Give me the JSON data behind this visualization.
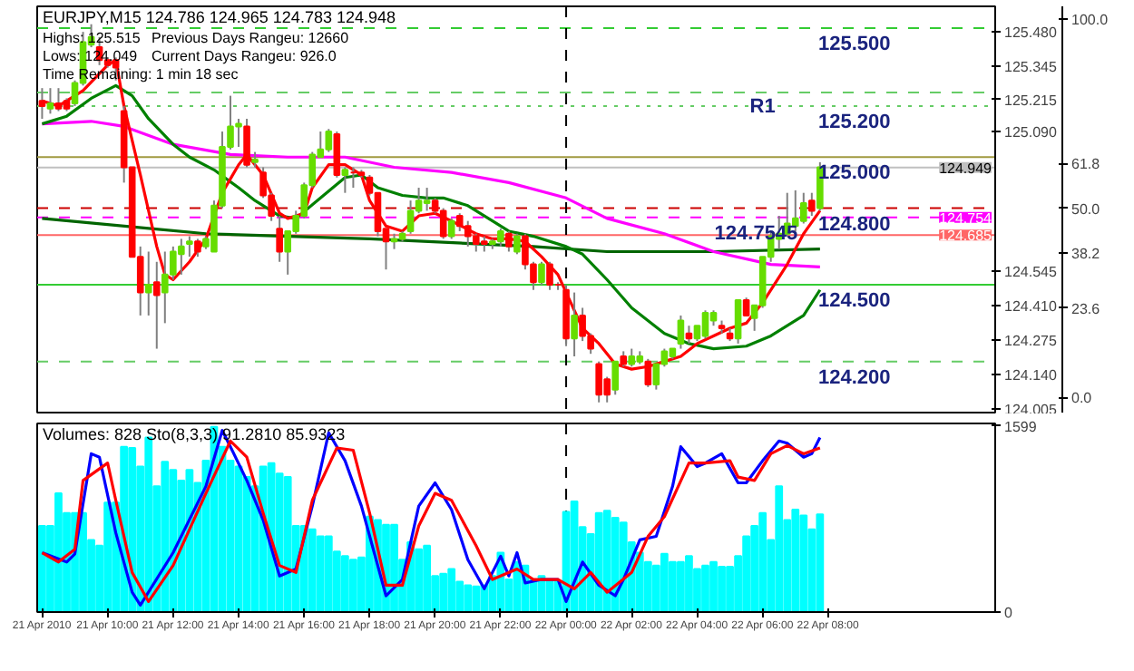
{
  "chart_data": [
    {
      "type": "candlestick",
      "title": "EURJPY,M15 124.786 124.965 124.783 124.948",
      "annotations": [
        "Highs: 125.515",
        "Previous Days Rangeu: 12660",
        "Lows: 124.049",
        "Current Days Rangeu: 926.0",
        "Time Remaining: 1 min 18 sec",
        {
          "text": "125.500",
          "x": "2010-04-22T08:48",
          "y": 125.495
        },
        {
          "text": "125.200",
          "x": "2010-04-22T08:48",
          "y": 125.19
        },
        {
          "text": "125.000",
          "x": "2010-04-22T08:48",
          "y": 124.99
        },
        {
          "text": "124.800",
          "x": "2010-04-22T08:48",
          "y": 124.79
        },
        {
          "text": "124.500",
          "x": "2010-04-22T08:48",
          "y": 124.49
        },
        {
          "text": "124.200",
          "x": "2010-04-22T08:48",
          "y": 124.19
        },
        {
          "text": "R1",
          "x": "2010-04-22T06:00",
          "y": 125.243
        },
        {
          "text": "124.7545",
          "x": "2010-04-22T05:48",
          "y": 124.754
        }
      ],
      "x": [
        "2010-04-21T08:00",
        "2010-04-21T08:15",
        "2010-04-21T08:30",
        "2010-04-21T08:45",
        "2010-04-21T09:00",
        "2010-04-21T09:15",
        "2010-04-21T09:30",
        "2010-04-21T09:45",
        "2010-04-21T10:00",
        "2010-04-21T10:15",
        "2010-04-21T10:30",
        "2010-04-21T10:45",
        "2010-04-21T11:00",
        "2010-04-21T11:15",
        "2010-04-21T11:30",
        "2010-04-21T11:45",
        "2010-04-21T12:00",
        "2010-04-21T12:15",
        "2010-04-21T12:30",
        "2010-04-21T12:45",
        "2010-04-21T13:00",
        "2010-04-21T13:15",
        "2010-04-21T13:30",
        "2010-04-21T13:45",
        "2010-04-21T14:00",
        "2010-04-21T14:15",
        "2010-04-21T14:30",
        "2010-04-21T14:45",
        "2010-04-21T15:00",
        "2010-04-21T15:15",
        "2010-04-21T15:30",
        "2010-04-21T15:45",
        "2010-04-21T16:00",
        "2010-04-21T16:15",
        "2010-04-21T16:30",
        "2010-04-21T16:45",
        "2010-04-21T17:00",
        "2010-04-21T17:15",
        "2010-04-21T17:30",
        "2010-04-21T17:45",
        "2010-04-21T18:00",
        "2010-04-21T18:15",
        "2010-04-21T18:30",
        "2010-04-21T18:45",
        "2010-04-21T19:00",
        "2010-04-21T19:15",
        "2010-04-21T19:30",
        "2010-04-21T19:45",
        "2010-04-21T20:00",
        "2010-04-21T20:15",
        "2010-04-21T20:30",
        "2010-04-21T20:45",
        "2010-04-21T21:00",
        "2010-04-21T21:15",
        "2010-04-21T21:30",
        "2010-04-21T21:45",
        "2010-04-21T22:00",
        "2010-04-21T22:15",
        "2010-04-21T22:30",
        "2010-04-21T22:45",
        "2010-04-21T23:00",
        "2010-04-21T23:15",
        "2010-04-21T23:30",
        "2010-04-21T23:45",
        "2010-04-22T00:00",
        "2010-04-22T00:15",
        "2010-04-22T00:30",
        "2010-04-22T00:45",
        "2010-04-22T01:00",
        "2010-04-22T01:15",
        "2010-04-22T01:30",
        "2010-04-22T01:45",
        "2010-04-22T02:00",
        "2010-04-22T02:15",
        "2010-04-22T02:30",
        "2010-04-22T02:45",
        "2010-04-22T03:00",
        "2010-04-22T03:15",
        "2010-04-22T03:30",
        "2010-04-22T03:45",
        "2010-04-22T04:00",
        "2010-04-22T04:15",
        "2010-04-22T04:30",
        "2010-04-22T04:45",
        "2010-04-22T05:00",
        "2010-04-22T05:15",
        "2010-04-22T05:30",
        "2010-04-22T05:45",
        "2010-04-22T06:00",
        "2010-04-22T06:15",
        "2010-04-22T06:30",
        "2010-04-22T06:45",
        "2010-04-22T07:00",
        "2010-04-22T07:15",
        "2010-04-22T07:30",
        "2010-04-22T07:45"
      ],
      "ohlc": [
        [
          125.21,
          125.26,
          125.14,
          125.19
        ],
        [
          125.18,
          125.26,
          125.16,
          125.2
        ],
        [
          125.2,
          125.26,
          125.17,
          125.18
        ],
        [
          125.21,
          125.22,
          125.17,
          125.18
        ],
        [
          125.2,
          125.29,
          125.19,
          125.28
        ],
        [
          125.28,
          125.48,
          125.27,
          125.44
        ],
        [
          125.43,
          125.51,
          125.42,
          125.46
        ],
        [
          125.42,
          125.46,
          125.35,
          125.37
        ],
        [
          125.37,
          125.38,
          125.34,
          125.35
        ],
        [
          125.37,
          125.38,
          125.29,
          125.34
        ],
        [
          125.17,
          125.19,
          124.89,
          124.95
        ],
        [
          124.95,
          124.95,
          124.6,
          124.6
        ],
        [
          124.6,
          124.64,
          124.37,
          124.46
        ],
        [
          124.46,
          124.62,
          124.37,
          124.49
        ],
        [
          124.5,
          124.58,
          124.24,
          124.45
        ],
        [
          124.46,
          124.62,
          124.34,
          124.53
        ],
        [
          124.53,
          124.64,
          124.51,
          124.62
        ],
        [
          124.61,
          124.67,
          124.53,
          124.64
        ],
        [
          124.65,
          124.68,
          124.6,
          124.66
        ],
        [
          124.66,
          124.67,
          124.6,
          124.62
        ],
        [
          124.64,
          124.68,
          124.63,
          124.67
        ],
        [
          124.62,
          124.82,
          124.62,
          124.8
        ],
        [
          124.8,
          125.09,
          124.79,
          125.03
        ],
        [
          125.03,
          125.23,
          125.02,
          125.11
        ],
        [
          125.11,
          125.14,
          125.03,
          125.12
        ],
        [
          125.11,
          125.14,
          124.95,
          124.96
        ],
        [
          124.97,
          125.01,
          124.95,
          124.98
        ],
        [
          124.93,
          124.95,
          124.83,
          124.84
        ],
        [
          124.84,
          124.85,
          124.74,
          124.76
        ],
        [
          124.71,
          124.76,
          124.58,
          124.62
        ],
        [
          124.62,
          124.7,
          124.53,
          124.7
        ],
        [
          124.7,
          124.78,
          124.69,
          124.76
        ],
        [
          124.76,
          124.89,
          124.75,
          124.88
        ],
        [
          124.88,
          125.01,
          124.87,
          125.0
        ],
        [
          124.99,
          125.09,
          124.99,
          125.02
        ],
        [
          125.02,
          125.1,
          125.01,
          125.09
        ],
        [
          125.08,
          125.09,
          124.91,
          124.92
        ],
        [
          124.92,
          124.95,
          124.85,
          124.94
        ],
        [
          124.93,
          124.95,
          124.87,
          124.93
        ],
        [
          124.93,
          124.94,
          124.91,
          124.92
        ],
        [
          124.91,
          124.92,
          124.84,
          124.85
        ],
        [
          124.85,
          124.85,
          124.68,
          124.7
        ],
        [
          124.71,
          124.71,
          124.55,
          124.66
        ],
        [
          124.66,
          124.69,
          124.63,
          124.67
        ],
        [
          124.67,
          124.7,
          124.66,
          124.69
        ],
        [
          124.7,
          124.82,
          124.69,
          124.78
        ],
        [
          124.78,
          124.87,
          124.77,
          124.82
        ],
        [
          124.81,
          124.87,
          124.78,
          124.82
        ],
        [
          124.82,
          124.83,
          124.77,
          124.78
        ],
        [
          124.78,
          124.79,
          124.67,
          124.68
        ],
        [
          124.68,
          124.75,
          124.67,
          124.74
        ],
        [
          124.76,
          124.77,
          124.7,
          124.72
        ],
        [
          124.72,
          124.74,
          124.64,
          124.68
        ],
        [
          124.68,
          124.69,
          124.62,
          124.65
        ],
        [
          124.66,
          124.68,
          124.62,
          124.65
        ],
        [
          124.65,
          124.67,
          124.63,
          124.66
        ],
        [
          124.66,
          124.71,
          124.64,
          124.7
        ],
        [
          124.69,
          124.7,
          124.62,
          124.64
        ],
        [
          124.62,
          124.69,
          124.61,
          124.68
        ],
        [
          124.68,
          124.69,
          124.55,
          124.57
        ],
        [
          124.57,
          124.58,
          124.47,
          124.5
        ],
        [
          124.5,
          124.58,
          124.49,
          124.57
        ],
        [
          124.57,
          124.58,
          124.47,
          124.49
        ],
        [
          124.49,
          124.5,
          124.47,
          124.49
        ],
        [
          124.47,
          124.49,
          124.25,
          124.28
        ],
        [
          124.28,
          124.46,
          124.21,
          124.37
        ],
        [
          124.37,
          124.4,
          124.27,
          124.29
        ],
        [
          124.29,
          124.3,
          124.22,
          124.24
        ],
        [
          124.18,
          124.19,
          124.03,
          124.06
        ],
        [
          124.12,
          124.13,
          124.03,
          124.06
        ],
        [
          124.08,
          124.19,
          124.06,
          124.19
        ],
        [
          124.21,
          124.23,
          124.17,
          124.18
        ],
        [
          124.18,
          124.24,
          124.17,
          124.21
        ],
        [
          124.19,
          124.23,
          124.18,
          124.21
        ],
        [
          124.19,
          124.2,
          124.09,
          124.1
        ],
        [
          124.1,
          124.18,
          124.08,
          124.18
        ],
        [
          124.18,
          124.24,
          124.17,
          124.23
        ],
        [
          124.21,
          124.24,
          124.2,
          124.24
        ],
        [
          124.26,
          124.37,
          124.24,
          124.35
        ],
        [
          124.3,
          124.33,
          124.26,
          124.28
        ],
        [
          124.28,
          124.33,
          124.27,
          124.33
        ],
        [
          124.29,
          124.39,
          124.28,
          124.38
        ],
        [
          124.35,
          124.39,
          124.33,
          124.38
        ],
        [
          124.33,
          124.35,
          124.3,
          124.32
        ],
        [
          124.3,
          124.32,
          124.27,
          124.28
        ],
        [
          124.28,
          124.43,
          124.26,
          124.43
        ],
        [
          124.43,
          124.44,
          124.37,
          124.37
        ],
        [
          124.36,
          124.41,
          124.31,
          124.41
        ],
        [
          124.41,
          124.6,
          124.4,
          124.6
        ],
        [
          124.6,
          124.7,
          124.58,
          124.68
        ],
        [
          124.67,
          124.76,
          124.63,
          124.69
        ],
        [
          124.69,
          124.85,
          124.68,
          124.73
        ],
        [
          124.72,
          124.86,
          124.7,
          124.75
        ],
        [
          124.74,
          124.85,
          124.73,
          124.81
        ],
        [
          124.82,
          124.85,
          124.76,
          124.78
        ],
        [
          124.79,
          124.97,
          124.78,
          124.95
        ]
      ],
      "series": [
        {
          "type": "line",
          "color": "#006400",
          "x": [
            "2010-04-21T08:00",
            "2010-04-21T13:00",
            "2010-04-21T18:00",
            "2010-04-21T23:00",
            "2010-04-22T01:15",
            "2010-04-22T04:30",
            "2010-04-22T07:45"
          ],
          "values": [
            124.75,
            124.69,
            124.67,
            124.64,
            124.62,
            124.62,
            124.63
          ]
        },
        {
          "type": "line",
          "color": "#ff00ff",
          "x": [
            "2010-04-21T08:00",
            "2010-04-21T09:30",
            "2010-04-21T10:30",
            "2010-04-21T12:00",
            "2010-04-21T13:45",
            "2010-04-21T15:30",
            "2010-04-21T17:15",
            "2010-04-21T18:45",
            "2010-04-21T20:30",
            "2010-04-21T22:15",
            "2010-04-22T00:00",
            "2010-04-22T01:15",
            "2010-04-22T03:00",
            "2010-04-22T04:30",
            "2010-04-22T06:15",
            "2010-04-22T07:45"
          ],
          "values": [
            125.12,
            125.13,
            125.11,
            125.04,
            125.0,
            124.99,
            124.99,
            124.95,
            124.93,
            124.89,
            124.83,
            124.75,
            124.69,
            124.62,
            124.57,
            124.56
          ]
        },
        {
          "type": "line",
          "color": "#008000",
          "x": [
            "2010-04-21T08:00",
            "2010-04-21T08:45",
            "2010-04-21T09:30",
            "2010-04-21T10:15",
            "2010-04-21T10:45",
            "2010-04-21T11:15",
            "2010-04-21T12:00",
            "2010-04-21T12:30",
            "2010-04-21T13:15",
            "2010-04-21T14:00",
            "2010-04-21T14:30",
            "2010-04-21T15:15",
            "2010-04-21T15:45",
            "2010-04-21T16:30",
            "2010-04-21T17:15",
            "2010-04-21T17:45",
            "2010-04-21T18:15",
            "2010-04-21T19:00",
            "2010-04-21T19:45",
            "2010-04-21T20:15",
            "2010-04-21T21:00",
            "2010-04-21T21:45",
            "2010-04-21T22:15",
            "2010-04-21T23:00",
            "2010-04-22T00:00",
            "2010-04-22T00:30",
            "2010-04-22T01:15",
            "2010-04-22T02:00",
            "2010-04-22T03:00",
            "2010-04-22T03:45",
            "2010-04-22T04:30",
            "2010-04-22T05:30",
            "2010-04-22T06:15",
            "2010-04-22T07:15",
            "2010-04-22T07:45"
          ],
          "values": [
            125.12,
            125.15,
            125.22,
            125.27,
            125.23,
            125.14,
            125.04,
            124.99,
            124.94,
            124.87,
            124.82,
            124.76,
            124.75,
            124.83,
            124.91,
            124.92,
            124.87,
            124.84,
            124.83,
            124.83,
            124.8,
            124.74,
            124.7,
            124.68,
            124.64,
            124.61,
            124.51,
            124.4,
            124.3,
            124.26,
            124.24,
            124.25,
            124.29,
            124.37,
            124.47
          ]
        },
        {
          "type": "line",
          "color": "#ff0000",
          "x": [
            "2010-04-21T08:00",
            "2010-04-21T08:30",
            "2010-04-21T09:15",
            "2010-04-21T10:00",
            "2010-04-21T10:15",
            "2010-04-21T10:30",
            "2010-04-21T11:00",
            "2010-04-21T11:30",
            "2010-04-21T11:45",
            "2010-04-21T12:00",
            "2010-04-21T12:30",
            "2010-04-21T13:00",
            "2010-04-21T13:30",
            "2010-04-21T14:00",
            "2010-04-21T14:15",
            "2010-04-21T14:45",
            "2010-04-21T15:15",
            "2010-04-21T15:30",
            "2010-04-21T16:00",
            "2010-04-21T16:15",
            "2010-04-21T16:45",
            "2010-04-21T17:15",
            "2010-04-21T17:45",
            "2010-04-21T18:00",
            "2010-04-21T18:30",
            "2010-04-21T19:00",
            "2010-04-21T19:30",
            "2010-04-21T20:00",
            "2010-04-21T20:30",
            "2010-04-21T21:15",
            "2010-04-21T21:45",
            "2010-04-21T22:15",
            "2010-04-21T22:45",
            "2010-04-21T23:15",
            "2010-04-21T23:45",
            "2010-04-22T00:00",
            "2010-04-22T00:30",
            "2010-04-22T01:00",
            "2010-04-22T01:30",
            "2010-04-22T02:00",
            "2010-04-22T02:30",
            "2010-04-22T03:00",
            "2010-04-22T03:30",
            "2010-04-22T04:00",
            "2010-04-22T04:30",
            "2010-04-22T05:00",
            "2010-04-22T05:30",
            "2010-04-22T06:00",
            "2010-04-22T06:45",
            "2010-04-22T07:15",
            "2010-04-22T07:45"
          ],
          "values": [
            125.21,
            125.19,
            125.25,
            125.35,
            125.37,
            125.19,
            124.92,
            124.64,
            124.53,
            124.51,
            124.58,
            124.67,
            124.85,
            124.96,
            125.0,
            124.92,
            124.77,
            124.75,
            124.77,
            124.87,
            124.96,
            124.96,
            124.92,
            124.82,
            124.72,
            124.7,
            124.76,
            124.77,
            124.74,
            124.69,
            124.67,
            124.67,
            124.66,
            124.6,
            124.53,
            124.46,
            124.32,
            124.26,
            124.18,
            124.16,
            124.17,
            124.19,
            124.21,
            124.26,
            124.29,
            124.32,
            124.34,
            124.42,
            124.57,
            124.69,
            124.78
          ]
        }
      ],
      "ref_lines": [
        {
          "axis": "y",
          "value": 125.495,
          "color": "#33cc33",
          "line_style": "dashed"
        },
        {
          "axis": "y",
          "value": 125.243,
          "color": "#66cc66",
          "line_style": "dashed"
        },
        {
          "axis": "y",
          "value": 125.19,
          "color": "#66cc66",
          "line_style": "dotted"
        },
        {
          "axis": "y",
          "value": 124.99,
          "color": "#a09a40",
          "line_style": "solid"
        },
        {
          "axis": "y",
          "value": 124.949,
          "label": "124.949",
          "color": "#c0c0c0",
          "line_style": "solid"
        },
        {
          "axis": "y",
          "value": 124.79,
          "color": "#cc0000",
          "line_style": "dashed"
        },
        {
          "axis": "y",
          "value": 124.754,
          "label": "124.754",
          "color": "#ff00ff",
          "line_style": "dashed"
        },
        {
          "axis": "y",
          "value": 124.685,
          "label": "124.685",
          "color": "#ff6666",
          "line_style": "solid"
        },
        {
          "axis": "y",
          "value": 124.49,
          "color": "#33cc33",
          "line_style": "solid"
        },
        {
          "axis": "y",
          "value": 124.19,
          "color": "#66cc66",
          "line_style": "dashed"
        },
        {
          "axis": "x",
          "value": "2010-04-22T00:00",
          "color": "#000000",
          "line_style": "dashed"
        }
      ],
      "xlim": [
        "2010-04-21T07:51",
        "2010-04-22T13:06"
      ],
      "ylim": [
        123.99,
        125.58
      ],
      "yticks": [
        {
          "value": 125.48,
          "label": "125.480"
        },
        {
          "value": 125.345,
          "label": "125.345"
        },
        {
          "value": 125.215,
          "label": "125.215"
        },
        {
          "value": 125.09,
          "label": "125.090"
        },
        {
          "value": 124.545,
          "label": "124.545"
        },
        {
          "value": 124.41,
          "label": "124.410"
        },
        {
          "value": 124.275,
          "label": "124.275"
        },
        {
          "value": 124.14,
          "label": "124.140"
        },
        {
          "value": 124.005,
          "label": "124.005"
        }
      ],
      "y2lim": [
        -4.05,
        103.4
      ],
      "y2ticks": [
        {
          "value": 100,
          "label": "100.0"
        },
        61.8,
        {
          "value": 50,
          "label": "50.0"
        },
        38.2,
        23.6,
        {
          "value": 0,
          "label": "0.0"
        }
      ],
      "tick_labels": "y"
    },
    {
      "type": "bar",
      "title": "Volumes: 828 Sto(8,3,3) 91.2810 85.9323",
      "x": [
        "2010-04-21T08:00",
        "2010-04-21T08:15",
        "2010-04-21T08:30",
        "2010-04-21T08:45",
        "2010-04-21T09:00",
        "2010-04-21T09:15",
        "2010-04-21T09:30",
        "2010-04-21T09:45",
        "2010-04-21T10:00",
        "2010-04-21T10:15",
        "2010-04-21T10:30",
        "2010-04-21T10:45",
        "2010-04-21T11:00",
        "2010-04-21T11:15",
        "2010-04-21T11:30",
        "2010-04-21T11:45",
        "2010-04-21T12:00",
        "2010-04-21T12:15",
        "2010-04-21T12:30",
        "2010-04-21T12:45",
        "2010-04-21T13:00",
        "2010-04-21T13:15",
        "2010-04-21T13:30",
        "2010-04-21T13:45",
        "2010-04-21T14:00",
        "2010-04-21T14:15",
        "2010-04-21T14:30",
        "2010-04-21T14:45",
        "2010-04-21T15:00",
        "2010-04-21T15:15",
        "2010-04-21T15:30",
        "2010-04-21T15:45",
        "2010-04-21T16:00",
        "2010-04-21T16:15",
        "2010-04-21T16:30",
        "2010-04-21T16:45",
        "2010-04-21T17:00",
        "2010-04-21T17:15",
        "2010-04-21T17:30",
        "2010-04-21T17:45",
        "2010-04-21T18:00",
        "2010-04-21T18:15",
        "2010-04-21T18:30",
        "2010-04-21T18:45",
        "2010-04-21T19:00",
        "2010-04-21T19:15",
        "2010-04-21T19:30",
        "2010-04-21T19:45",
        "2010-04-21T20:00",
        "2010-04-21T20:15",
        "2010-04-21T20:30",
        "2010-04-21T20:45",
        "2010-04-21T21:00",
        "2010-04-21T21:15",
        "2010-04-21T21:30",
        "2010-04-21T21:45",
        "2010-04-21T22:00",
        "2010-04-21T22:15",
        "2010-04-21T22:30",
        "2010-04-21T22:45",
        "2010-04-21T23:00",
        "2010-04-21T23:15",
        "2010-04-21T23:30",
        "2010-04-21T23:45",
        "2010-04-22T00:00",
        "2010-04-22T00:15",
        "2010-04-22T00:30",
        "2010-04-22T00:45",
        "2010-04-22T01:00",
        "2010-04-22T01:15",
        "2010-04-22T01:30",
        "2010-04-22T01:45",
        "2010-04-22T02:00",
        "2010-04-22T02:15",
        "2010-04-22T02:30",
        "2010-04-22T02:45",
        "2010-04-22T03:00",
        "2010-04-22T03:15",
        "2010-04-22T03:30",
        "2010-04-22T03:45",
        "2010-04-22T04:00",
        "2010-04-22T04:15",
        "2010-04-22T04:30",
        "2010-04-22T04:45",
        "2010-04-22T05:00",
        "2010-04-22T05:15",
        "2010-04-22T05:30",
        "2010-04-22T05:45",
        "2010-04-22T06:00",
        "2010-04-22T06:15",
        "2010-04-22T06:30",
        "2010-04-22T06:45",
        "2010-04-22T07:00",
        "2010-04-22T07:15",
        "2010-04-22T07:30",
        "2010-04-22T07:45"
      ],
      "series": [
        {
          "color": "#00ffff",
          "values": [
            740,
            740,
            1020,
            850,
            850,
            850,
            620,
            570,
            940,
            940,
            1420,
            1410,
            1250,
            1500,
            1080,
            1290,
            1220,
            1130,
            1220,
            1110,
            1300,
            1590,
            1420,
            1300,
            1250,
            1160,
            1080,
            1250,
            1280,
            1190,
            1160,
            740,
            740,
            710,
            650,
            650,
            520,
            480,
            450,
            470,
            820,
            790,
            750,
            750,
            450,
            600,
            540,
            570,
            310,
            330,
            370,
            260,
            230,
            220,
            230,
            310,
            510,
            280,
            430,
            400,
            280,
            310,
            280,
            260,
            860,
            950,
            730,
            670,
            850,
            870,
            810,
            770,
            600,
            510,
            430,
            400,
            500,
            430,
            430,
            480,
            370,
            400,
            430,
            390,
            390,
            480,
            650,
            740,
            850,
            620,
            1080,
            790,
            880,
            830,
            710,
            840
          ]
        },
        {
          "type": "line",
          "color": "#0000ff",
          "x": [
            "2010-04-21T08:00",
            "2010-04-21T08:45",
            "2010-04-21T09:00",
            "2010-04-21T09:30",
            "2010-04-21T09:45",
            "2010-04-21T10:15",
            "2010-04-21T10:45",
            "2010-04-21T11:00",
            "2010-04-21T12:00",
            "2010-04-21T13:00",
            "2010-04-21T13:30",
            "2010-04-21T13:45",
            "2010-04-21T14:15",
            "2010-04-21T14:45",
            "2010-04-21T15:15",
            "2010-04-21T15:45",
            "2010-04-21T16:15",
            "2010-04-21T16:45",
            "2010-04-21T17:15",
            "2010-04-21T17:45",
            "2010-04-21T18:30",
            "2010-04-21T19:00",
            "2010-04-21T19:30",
            "2010-04-21T20:00",
            "2010-04-21T20:30",
            "2010-04-21T21:00",
            "2010-04-21T21:30",
            "2010-04-21T22:00",
            "2010-04-21T22:15",
            "2010-04-21T22:30",
            "2010-04-21T22:45",
            "2010-04-21T23:15",
            "2010-04-21T23:45",
            "2010-04-22T00:00",
            "2010-04-22T00:30",
            "2010-04-22T01:00",
            "2010-04-22T01:30",
            "2010-04-22T01:45",
            "2010-04-22T02:15",
            "2010-04-22T02:45",
            "2010-04-22T03:15",
            "2010-04-22T03:30",
            "2010-04-22T04:00",
            "2010-04-22T04:15",
            "2010-04-22T04:45",
            "2010-04-22T05:15",
            "2010-04-22T05:30",
            "2010-04-22T06:00",
            "2010-04-22T06:30",
            "2010-04-22T06:45",
            "2010-04-22T07:15",
            "2010-04-22T07:30",
            "2010-04-22T07:45"
          ],
          "values": [
            510,
            430,
            500,
            1360,
            1330,
            680,
            170,
            60,
            510,
            1080,
            1560,
            1420,
            1130,
            790,
            310,
            370,
            910,
            1540,
            1300,
            910,
            140,
            280,
            910,
            1110,
            880,
            450,
            200,
            480,
            310,
            510,
            250,
            280,
            280,
            90,
            430,
            230,
            140,
            280,
            620,
            650,
            1080,
            1420,
            1250,
            1280,
            1360,
            1110,
            1110,
            1300,
            1470,
            1450,
            1330,
            1360,
            1500
          ]
        },
        {
          "type": "line",
          "color": "#ff0000",
          "x": [
            "2010-04-21T08:00",
            "2010-04-21T08:30",
            "2010-04-21T09:00",
            "2010-04-21T09:15",
            "2010-04-21T10:00",
            "2010-04-21T10:15",
            "2010-04-21T10:45",
            "2010-04-21T11:15",
            "2010-04-21T12:00",
            "2010-04-21T13:00",
            "2010-04-21T13:45",
            "2010-04-21T14:15",
            "2010-04-21T14:45",
            "2010-04-21T15:15",
            "2010-04-21T15:45",
            "2010-04-21T16:15",
            "2010-04-21T17:00",
            "2010-04-21T17:30",
            "2010-04-21T18:00",
            "2010-04-21T18:30",
            "2010-04-21T19:00",
            "2010-04-21T19:30",
            "2010-04-21T20:00",
            "2010-04-21T20:30",
            "2010-04-21T21:15",
            "2010-04-21T21:45",
            "2010-04-21T22:30",
            "2010-04-21T23:00",
            "2010-04-21T23:45",
            "2010-04-22T00:15",
            "2010-04-22T00:45",
            "2010-04-22T01:15",
            "2010-04-22T02:00",
            "2010-04-22T02:30",
            "2010-04-22T03:00",
            "2010-04-22T03:45",
            "2010-04-22T04:15",
            "2010-04-22T05:00",
            "2010-04-22T05:15",
            "2010-04-22T05:45",
            "2010-04-22T06:15",
            "2010-04-22T06:45",
            "2010-04-22T07:15",
            "2010-04-22T07:45"
          ],
          "values": [
            510,
            430,
            540,
            1130,
            1280,
            960,
            340,
            90,
            400,
            1020,
            1470,
            1330,
            850,
            400,
            340,
            960,
            1410,
            1390,
            850,
            230,
            230,
            740,
            1020,
            960,
            570,
            280,
            370,
            280,
            280,
            200,
            340,
            170,
            340,
            650,
            820,
            1280,
            1280,
            1300,
            1160,
            1130,
            1360,
            1430,
            1360,
            1410
          ]
        }
      ],
      "ref_lines": [
        {
          "axis": "x",
          "value": "2010-04-22T00:00",
          "color": "#000000",
          "line_style": "dashed"
        }
      ],
      "xlim": [
        "2010-04-21T07:51",
        "2010-04-22T13:06"
      ],
      "ylim": [
        0,
        1620
      ],
      "yticks": [
        0,
        1599
      ],
      "xticks": [
        {
          "value": "2010-04-21T08:00",
          "label": "21 Apr 2010"
        },
        {
          "value": "2010-04-21T10:00",
          "label": "21 Apr 10:00"
        },
        {
          "value": "2010-04-21T12:00",
          "label": "21 Apr 12:00"
        },
        {
          "value": "2010-04-21T14:00",
          "label": "21 Apr 14:00"
        },
        {
          "value": "2010-04-21T16:00",
          "label": "21 Apr 16:00"
        },
        {
          "value": "2010-04-21T18:00",
          "label": "21 Apr 18:00"
        },
        {
          "value": "2010-04-21T20:00",
          "label": "21 Apr 20:00"
        },
        {
          "value": "2010-04-21T22:00",
          "label": "21 Apr 22:00"
        },
        {
          "value": "2010-04-22T00:00",
          "label": "22 Apr 00:00"
        },
        {
          "value": "2010-04-22T02:00",
          "label": "22 Apr 02:00"
        },
        {
          "value": "2010-04-22T04:00",
          "label": "22 Apr 04:00"
        },
        {
          "value": "2010-04-22T06:00",
          "label": "22 Apr 06:00"
        },
        {
          "value": "2010-04-22T08:00",
          "label": "22 Apr 08:00"
        }
      ]
    }
  ]
}
